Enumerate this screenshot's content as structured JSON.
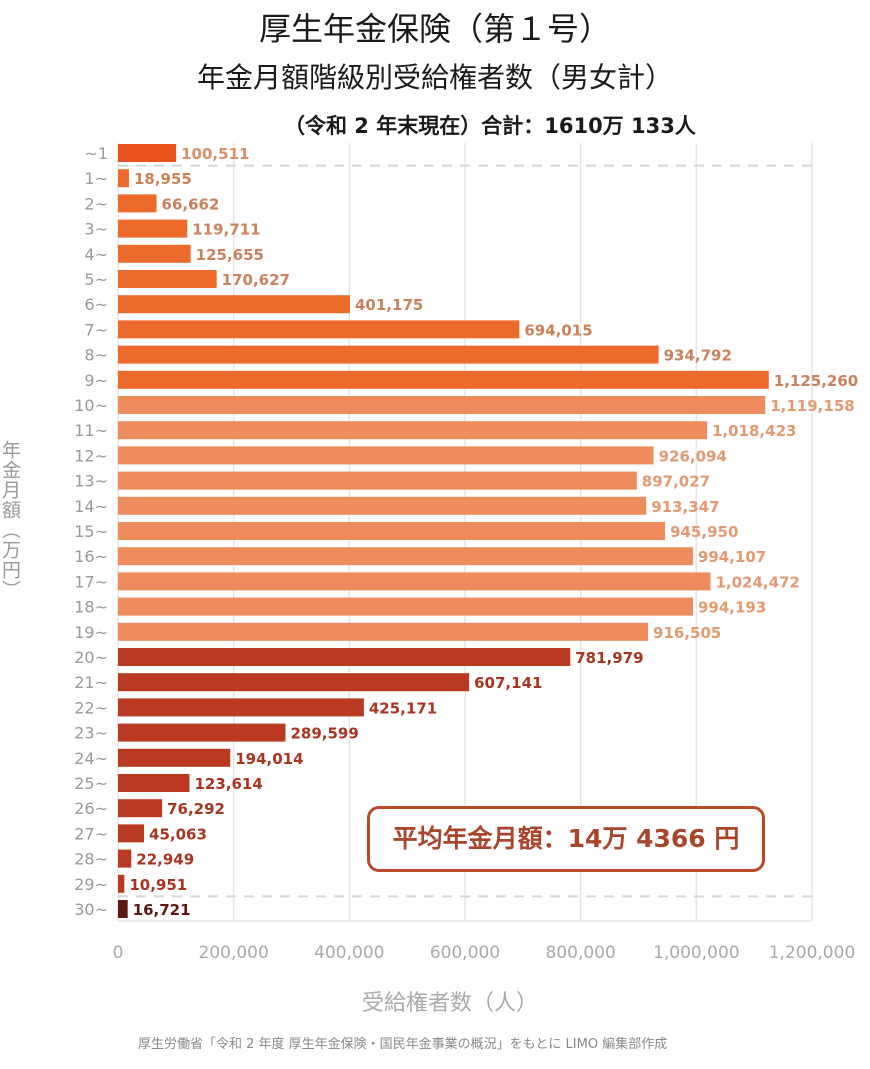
{
  "title": "厚生年金保険（第１号）",
  "subtitle": "年金月額階級別受給権者数（男女計）",
  "note": "（令和 2 年末現在）合計：1610万 133人",
  "average_box": "平均年金月額：14万 4366 円",
  "source": "厚生労働省「令和 2 年度 厚生年金保険・国民年金事業の概況」をもとに LIMO 編集部作成",
  "colors": {
    "first": "#e8531f",
    "low": "#ec6a2c",
    "mid": "#ef8c5e",
    "high": "#b93a20",
    "top": "#5e1810",
    "grid": "#e6e6e6",
    "axis_text": "#aaaaaa"
  },
  "chart_data": {
    "type": "bar",
    "orientation": "horizontal",
    "title": "厚生年金保険（第１号） 年金月額階級別受給権者数（男女計）",
    "xlabel": "受給権者数（人）",
    "ylabel": "年金月額（万円）",
    "xlim": [
      0,
      1200000
    ],
    "xticks": [
      "0",
      "200,000",
      "400,000",
      "600,000",
      "800,000",
      "1,000,000",
      "1,200,000"
    ],
    "grid": true,
    "categories": [
      "~1",
      "1~",
      "2~",
      "3~",
      "4~",
      "5~",
      "6~",
      "7~",
      "8~",
      "9~",
      "10~",
      "11~",
      "12~",
      "13~",
      "14~",
      "15~",
      "16~",
      "17~",
      "18~",
      "19~",
      "20~",
      "21~",
      "22~",
      "23~",
      "24~",
      "25~",
      "26~",
      "27~",
      "28~",
      "29~",
      "30~"
    ],
    "values": [
      100511,
      18955,
      66662,
      119711,
      125655,
      170627,
      401175,
      694015,
      934792,
      1125260,
      1119158,
      1018423,
      926094,
      897027,
      913347,
      945950,
      994107,
      1024472,
      994193,
      916505,
      781979,
      607141,
      425171,
      289599,
      194014,
      123614,
      76292,
      45063,
      22949,
      10951,
      16721
    ],
    "labels": [
      "100,511",
      "18,955",
      "66,662",
      "119,711",
      "125,655",
      "170,627",
      "401,175",
      "694,015",
      "934,792",
      "1,125,260",
      "1,119,158",
      "1,018,423",
      "926,094",
      "897,027",
      "913,347",
      "945,950",
      "994,107",
      "1,024,472",
      "994,193",
      "916,505",
      "781,979",
      "607,141",
      "425,171",
      "289,599",
      "194,014",
      "123,614",
      "76,292",
      "45,063",
      "22,949",
      "10,951",
      "16,721"
    ]
  }
}
